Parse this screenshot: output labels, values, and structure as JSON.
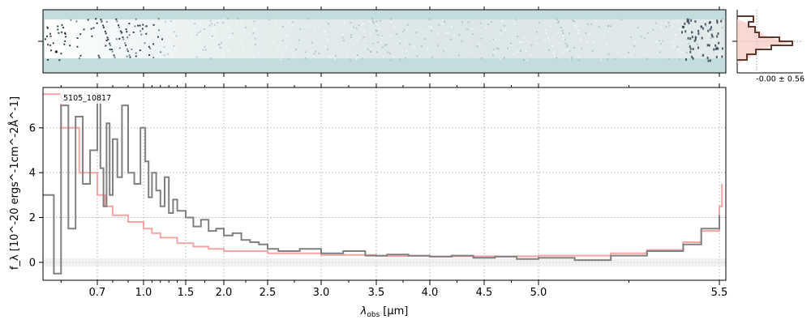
{
  "chart_data": {
    "type": "line",
    "object_label": "5105_10817",
    "xlabel_main": "λ",
    "xlabel_sub": "obs",
    "xlabel_unit": "[μm]",
    "ylabel_text": "f_λ [10^-20 ergs^-1cm^-2Å^-1]",
    "x_ticks": [
      0.7,
      1.0,
      1.5,
      2.0,
      2.5,
      3.0,
      3.5,
      4.0,
      4.5,
      5.0,
      5.5
    ],
    "x_tick_labels": [
      "0.7",
      "1.0",
      "1.5",
      "2.0",
      "2.5",
      "3.0",
      "3.5",
      "4.0",
      "4.5",
      "5.0",
      "5.5"
    ],
    "x_scale": "sqrt-like",
    "x_range": [
      0.55,
      5.55
    ],
    "y_ticks": [
      0,
      2,
      4,
      6
    ],
    "y_tick_labels": [
      "0",
      "2",
      "4",
      "6"
    ],
    "ylim": [
      -0.8,
      7.8
    ],
    "grid": true,
    "series": [
      {
        "role": "flux",
        "color": "#808080",
        "points": [
          [
            0.55,
            3.0
          ],
          [
            0.58,
            -0.5
          ],
          [
            0.6,
            7.0
          ],
          [
            0.62,
            1.5
          ],
          [
            0.64,
            6.5
          ],
          [
            0.66,
            3.5
          ],
          [
            0.68,
            5.0
          ],
          [
            0.7,
            7.5
          ],
          [
            0.72,
            4.2
          ],
          [
            0.74,
            2.5
          ],
          [
            0.76,
            6.2
          ],
          [
            0.78,
            3.0
          ],
          [
            0.8,
            5.5
          ],
          [
            0.83,
            3.8
          ],
          [
            0.86,
            7.0
          ],
          [
            0.9,
            4.0
          ],
          [
            0.94,
            3.5
          ],
          [
            0.98,
            6.0
          ],
          [
            1.02,
            4.5
          ],
          [
            1.06,
            2.9
          ],
          [
            1.1,
            4.0
          ],
          [
            1.15,
            3.2
          ],
          [
            1.2,
            2.5
          ],
          [
            1.25,
            3.8
          ],
          [
            1.3,
            2.2
          ],
          [
            1.35,
            2.8
          ],
          [
            1.4,
            2.3
          ],
          [
            1.5,
            2.0
          ],
          [
            1.6,
            1.6
          ],
          [
            1.7,
            1.9
          ],
          [
            1.8,
            1.4
          ],
          [
            1.9,
            1.5
          ],
          [
            2.0,
            1.2
          ],
          [
            2.1,
            1.3
          ],
          [
            2.2,
            1.0
          ],
          [
            2.3,
            0.9
          ],
          [
            2.4,
            0.8
          ],
          [
            2.5,
            0.6
          ],
          [
            2.6,
            0.5
          ],
          [
            2.8,
            0.6
          ],
          [
            3.0,
            0.4
          ],
          [
            3.2,
            0.5
          ],
          [
            3.4,
            0.3
          ],
          [
            3.6,
            0.35
          ],
          [
            3.8,
            0.3
          ],
          [
            4.0,
            0.25
          ],
          [
            4.2,
            0.3
          ],
          [
            4.4,
            0.2
          ],
          [
            4.6,
            0.25
          ],
          [
            4.8,
            0.15
          ],
          [
            5.0,
            0.2
          ],
          [
            5.1,
            0.1
          ],
          [
            5.2,
            0.3
          ],
          [
            5.3,
            0.5
          ],
          [
            5.4,
            0.8
          ],
          [
            5.45,
            1.5
          ],
          [
            5.5,
            2.1
          ]
        ]
      },
      {
        "role": "error",
        "color": "#f4a6a6",
        "points": [
          [
            0.55,
            7.5
          ],
          [
            0.6,
            6.0
          ],
          [
            0.65,
            4.0
          ],
          [
            0.7,
            3.0
          ],
          [
            0.75,
            2.5
          ],
          [
            0.8,
            2.1
          ],
          [
            0.9,
            1.8
          ],
          [
            1.0,
            1.5
          ],
          [
            1.1,
            1.3
          ],
          [
            1.2,
            1.1
          ],
          [
            1.4,
            0.85
          ],
          [
            1.6,
            0.7
          ],
          [
            1.8,
            0.6
          ],
          [
            2.0,
            0.5
          ],
          [
            2.5,
            0.4
          ],
          [
            3.0,
            0.33
          ],
          [
            3.5,
            0.28
          ],
          [
            4.0,
            0.27
          ],
          [
            4.5,
            0.27
          ],
          [
            5.0,
            0.3
          ],
          [
            5.2,
            0.4
          ],
          [
            5.3,
            0.55
          ],
          [
            5.4,
            0.9
          ],
          [
            5.45,
            1.4
          ],
          [
            5.5,
            2.5
          ],
          [
            5.52,
            3.5
          ]
        ]
      }
    ],
    "histogram": {
      "label": "-0.00 ± 0.56"
    }
  }
}
